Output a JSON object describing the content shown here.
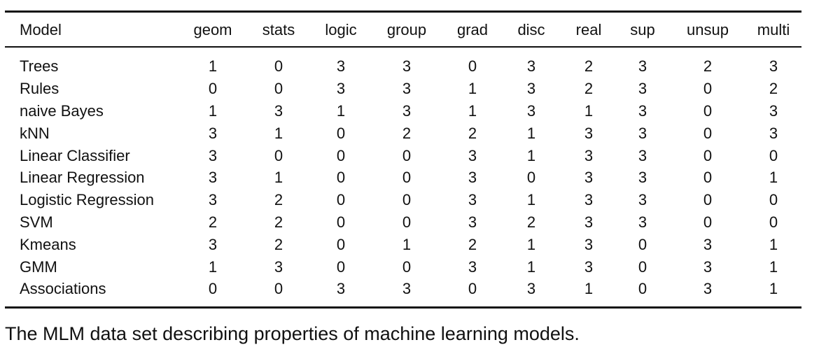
{
  "table": {
    "columns": [
      "Model",
      "geom",
      "stats",
      "logic",
      "group",
      "grad",
      "disc",
      "real",
      "sup",
      "unsup",
      "multi"
    ],
    "rows": [
      {
        "model": "Trees",
        "values": [
          "1",
          "0",
          "3",
          "3",
          "0",
          "3",
          "2",
          "3",
          "2",
          "3"
        ]
      },
      {
        "model": "Rules",
        "values": [
          "0",
          "0",
          "3",
          "3",
          "1",
          "3",
          "2",
          "3",
          "0",
          "2"
        ]
      },
      {
        "model": "naive Bayes",
        "values": [
          "1",
          "3",
          "1",
          "3",
          "1",
          "3",
          "1",
          "3",
          "0",
          "3"
        ]
      },
      {
        "model": "kNN",
        "values": [
          "3",
          "1",
          "0",
          "2",
          "2",
          "1",
          "3",
          "3",
          "0",
          "3"
        ]
      },
      {
        "model": "Linear Classifier",
        "values": [
          "3",
          "0",
          "0",
          "0",
          "3",
          "1",
          "3",
          "3",
          "0",
          "0"
        ]
      },
      {
        "model": "Linear Regression",
        "values": [
          "3",
          "1",
          "0",
          "0",
          "3",
          "0",
          "3",
          "3",
          "0",
          "1"
        ]
      },
      {
        "model": "Logistic Regression",
        "values": [
          "3",
          "2",
          "0",
          "0",
          "3",
          "1",
          "3",
          "3",
          "0",
          "0"
        ]
      },
      {
        "model": "SVM",
        "values": [
          "2",
          "2",
          "0",
          "0",
          "3",
          "2",
          "3",
          "3",
          "0",
          "0"
        ]
      },
      {
        "model": "Kmeans",
        "values": [
          "3",
          "2",
          "0",
          "1",
          "2",
          "1",
          "3",
          "0",
          "3",
          "1"
        ]
      },
      {
        "model": "GMM",
        "values": [
          "1",
          "3",
          "0",
          "0",
          "3",
          "1",
          "3",
          "0",
          "3",
          "1"
        ]
      },
      {
        "model": "Associations",
        "values": [
          "0",
          "0",
          "3",
          "3",
          "0",
          "3",
          "1",
          "0",
          "3",
          "1"
        ]
      }
    ]
  },
  "caption": "The MLM data set describing properties of machine learning models."
}
